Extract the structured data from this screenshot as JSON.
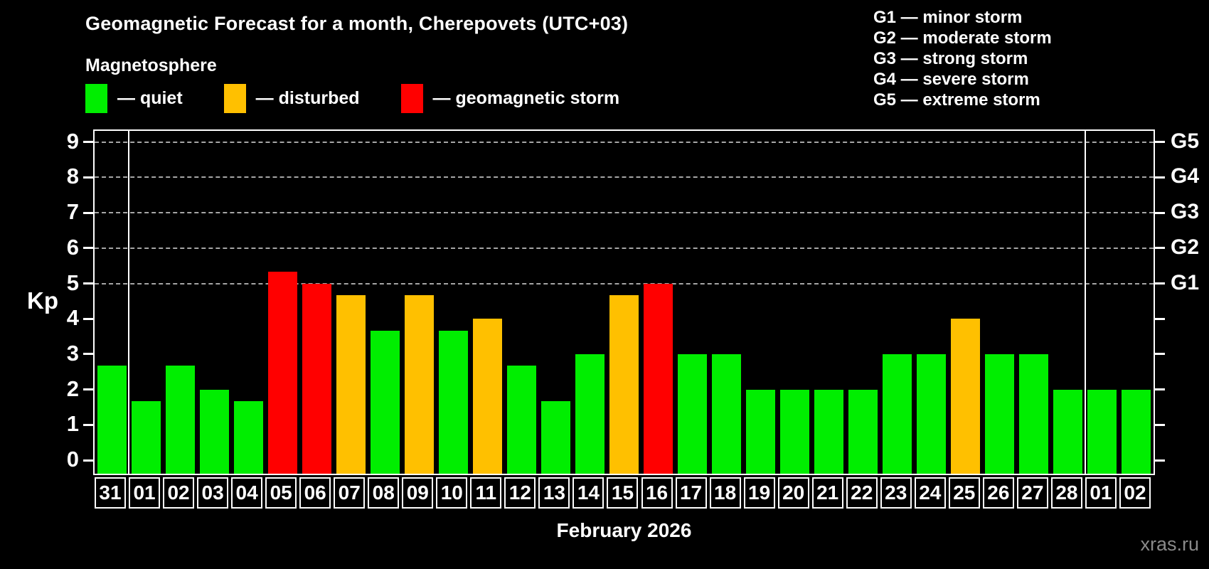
{
  "header": {
    "title": "Geomagnetic Forecast for a month, Cherepovets (UTC+03)",
    "subtitle": "Magnetosphere"
  },
  "legend": {
    "items": [
      {
        "name": "quiet",
        "label": "— quiet",
        "color": "#00ee00"
      },
      {
        "name": "disturbed",
        "label": "— disturbed",
        "color": "#ffc000"
      },
      {
        "name": "storm",
        "label": "— geomagnetic storm",
        "color": "#ff0000"
      }
    ]
  },
  "g_legend": {
    "items": [
      "G1 — minor storm",
      "G2 — moderate storm",
      "G3 — strong storm",
      "G4 — severe storm",
      "G5 — extreme storm"
    ]
  },
  "chart_data": {
    "type": "bar",
    "title": "Geomagnetic Forecast for a month, Cherepovets (UTC+03)",
    "ylabel": "Kp",
    "xlabel": "February 2026",
    "ylim": [
      -0.4,
      9.4
    ],
    "yticks": [
      0,
      1,
      2,
      3,
      4,
      5,
      6,
      7,
      8,
      9
    ],
    "grid": {
      "values": [
        5,
        6,
        7,
        8,
        9
      ],
      "style": "dashed",
      "color": "#a6a6a6",
      "right_labels": [
        "G1",
        "G2",
        "G3",
        "G4",
        "G5"
      ]
    },
    "categories": [
      "31",
      "01",
      "02",
      "03",
      "04",
      "05",
      "06",
      "07",
      "08",
      "09",
      "10",
      "11",
      "12",
      "13",
      "14",
      "15",
      "16",
      "17",
      "18",
      "19",
      "20",
      "21",
      "22",
      "23",
      "24",
      "25",
      "26",
      "27",
      "28",
      "01",
      "02"
    ],
    "values": [
      2.67,
      1.67,
      2.67,
      2,
      1.67,
      5.33,
      5,
      4.67,
      3.67,
      4.67,
      3.67,
      4,
      2.67,
      1.67,
      3,
      4.67,
      5,
      3,
      3,
      2,
      2,
      2,
      2,
      3,
      3,
      4,
      3,
      3,
      2,
      2,
      2
    ],
    "status": [
      "quiet",
      "quiet",
      "quiet",
      "quiet",
      "quiet",
      "storm",
      "storm",
      "disturbed",
      "quiet",
      "disturbed",
      "quiet",
      "disturbed",
      "quiet",
      "quiet",
      "quiet",
      "disturbed",
      "storm",
      "quiet",
      "quiet",
      "quiet",
      "quiet",
      "quiet",
      "quiet",
      "quiet",
      "quiet",
      "disturbed",
      "quiet",
      "quiet",
      "quiet",
      "quiet",
      "quiet"
    ],
    "colors": {
      "quiet": "#00ee00",
      "disturbed": "#ffc000",
      "storm": "#ff0000"
    },
    "month_dividers_after_index": [
      0,
      28
    ],
    "legend_position": "top"
  },
  "footer": {
    "xlabel": "February 2026",
    "watermark": "xras.ru"
  }
}
